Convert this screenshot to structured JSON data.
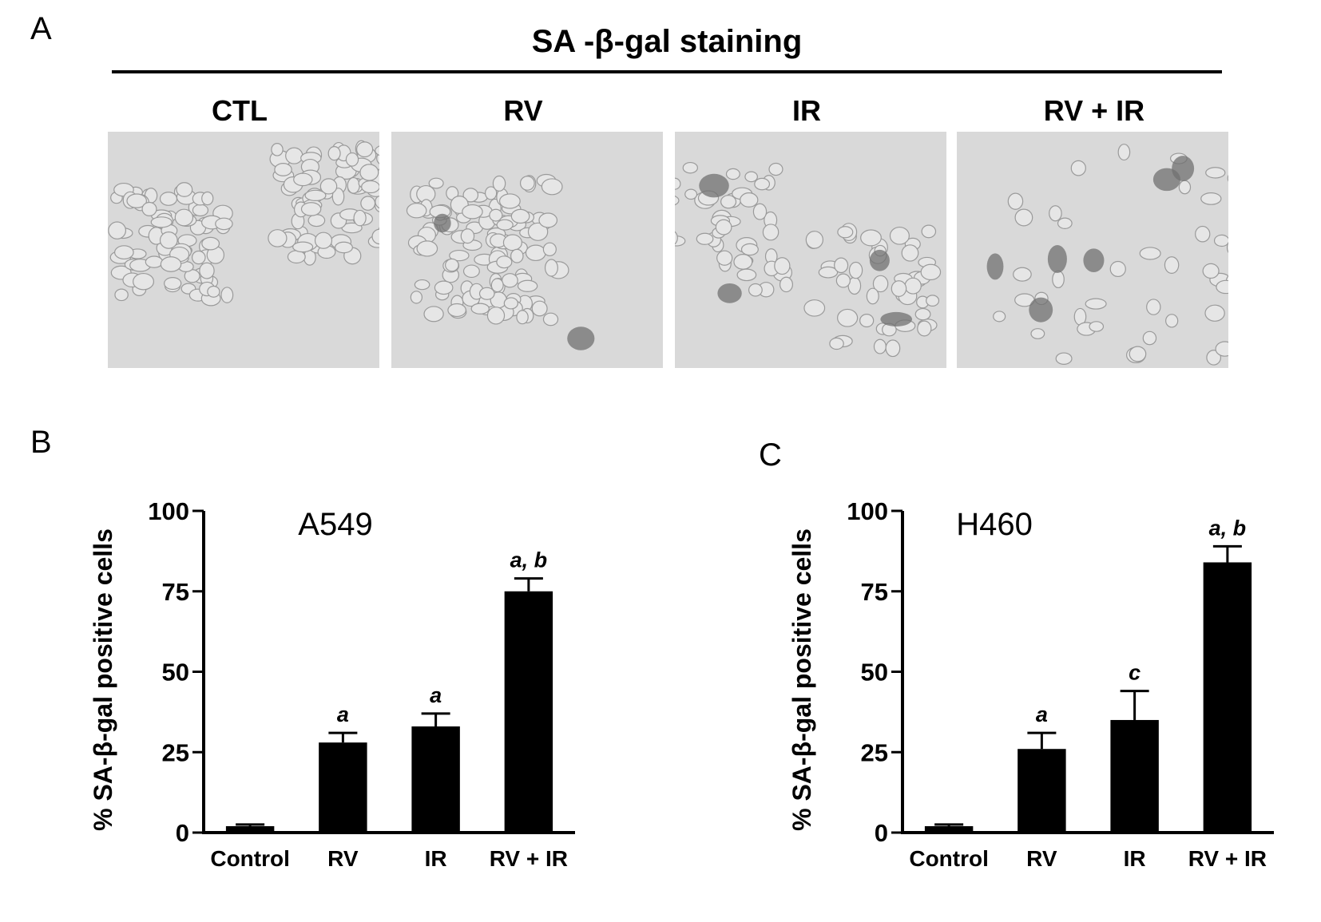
{
  "panel_a": {
    "letter": "A",
    "title": "SA -β-gal staining",
    "columns": [
      "CTL",
      "RV",
      "IR",
      "RV + IR"
    ]
  },
  "chart_data": [
    {
      "panel_letter": "B",
      "type": "bar",
      "title": "A549",
      "ylabel": "% SA-β-gal positive cells",
      "xlabel": "",
      "categories": [
        "Control",
        "RV",
        "IR",
        "RV + IR"
      ],
      "values": [
        2,
        28,
        33,
        75
      ],
      "errors": [
        0.5,
        3,
        4,
        4
      ],
      "annotations": [
        "",
        "a",
        "a",
        "a, b"
      ],
      "ylim": [
        0,
        100
      ],
      "yticks": [
        0,
        25,
        50,
        75,
        100
      ],
      "bar_color": "#000000",
      "grid": false
    },
    {
      "panel_letter": "C",
      "type": "bar",
      "title": "H460",
      "ylabel": "% SA-β-gal positive cells",
      "xlabel": "",
      "categories": [
        "Control",
        "RV",
        "IR",
        "RV + IR"
      ],
      "values": [
        2,
        26,
        35,
        84
      ],
      "errors": [
        0.5,
        5,
        9,
        5
      ],
      "annotations": [
        "",
        "a",
        "c",
        "a, b"
      ],
      "ylim": [
        0,
        100
      ],
      "yticks": [
        0,
        25,
        50,
        75,
        100
      ],
      "bar_color": "#000000",
      "grid": false
    }
  ]
}
